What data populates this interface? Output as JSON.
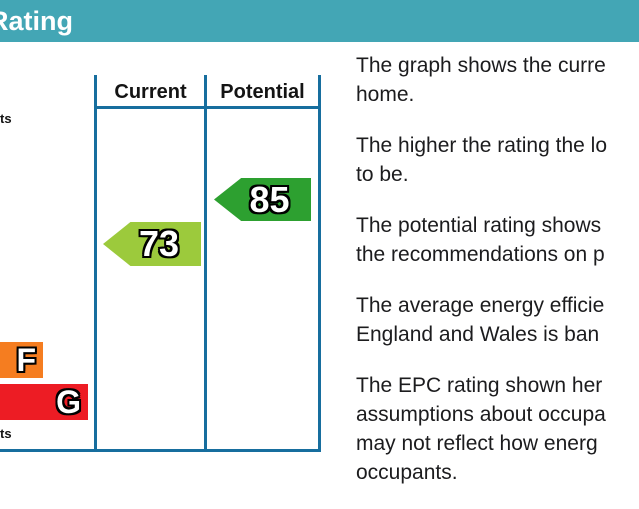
{
  "header": {
    "title": "Rating",
    "bg_color": "#43A6B5",
    "text_color": "#FFFFFF"
  },
  "chart": {
    "border_color": "#176E9E",
    "columns": {
      "current_label": "Current",
      "potential_label": "Potential"
    },
    "top_caption_fragment": "ts",
    "bottom_caption_fragment": "ts",
    "bands": [
      {
        "letter": "F",
        "color": "#F57D20"
      },
      {
        "letter": "G",
        "color": "#ED1C24"
      }
    ],
    "current": {
      "value": "73",
      "color": "#9CCA3C"
    },
    "potential": {
      "value": "85",
      "color": "#2DA030"
    }
  },
  "chart_data": {
    "type": "epc-energy-efficiency-rating",
    "columns": [
      "Current",
      "Potential"
    ],
    "current_rating": 73,
    "potential_rating": 85,
    "visible_band_letters": [
      "F",
      "G"
    ],
    "band_colors": {
      "F": "#F57D20",
      "G": "#ED1C24"
    },
    "arrow_colors": {
      "current": "#9CCA3C",
      "potential": "#2DA030"
    }
  },
  "description": {
    "paragraphs": [
      {
        "lines": [
          "The graph shows the curre",
          "home."
        ]
      },
      {
        "lines": [
          "The higher the rating the lo",
          "to be."
        ]
      },
      {
        "lines": [
          "The potential rating shows",
          "the recommendations on p"
        ]
      },
      {
        "lines": [
          "The average energy efficie",
          "England and Wales is ban"
        ]
      },
      {
        "lines": [
          "The EPC rating shown her",
          "assumptions about occupa",
          "may not reflect how energ",
          "occupants."
        ]
      }
    ]
  }
}
